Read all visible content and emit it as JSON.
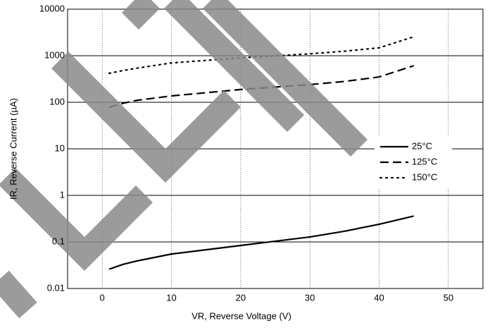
{
  "chart_data": {
    "type": "line",
    "xlabel": "VR, Reverse Voltage (V)",
    "ylabel": "IR, Reverse Current (µA)",
    "xlim": [
      -5,
      55
    ],
    "xticks": [
      0,
      10,
      20,
      30,
      40,
      50
    ],
    "ylim": [
      0.01,
      10000
    ],
    "yticks": [
      0.01,
      0.1,
      1,
      10,
      100,
      1000,
      10000
    ],
    "log_y": true,
    "grid": true,
    "legend": "right",
    "x": [
      1,
      3,
      5,
      10,
      20,
      30,
      35,
      40,
      45
    ],
    "series": [
      {
        "name": "25°C",
        "color": "#000000",
        "style": "solid",
        "values": [
          0.026,
          0.033,
          0.039,
          0.055,
          0.084,
          0.128,
          0.17,
          0.24,
          0.36
        ]
      },
      {
        "name": "125°C",
        "color": "#000000",
        "style": "dashed",
        "values": [
          78,
          95,
          110,
          137,
          188,
          240,
          280,
          350,
          610
        ]
      },
      {
        "name": "150°C",
        "color": "#000000",
        "style": "dotted",
        "values": [
          420,
          480,
          540,
          700,
          900,
          1100,
          1250,
          1480,
          2550
        ]
      }
    ]
  }
}
